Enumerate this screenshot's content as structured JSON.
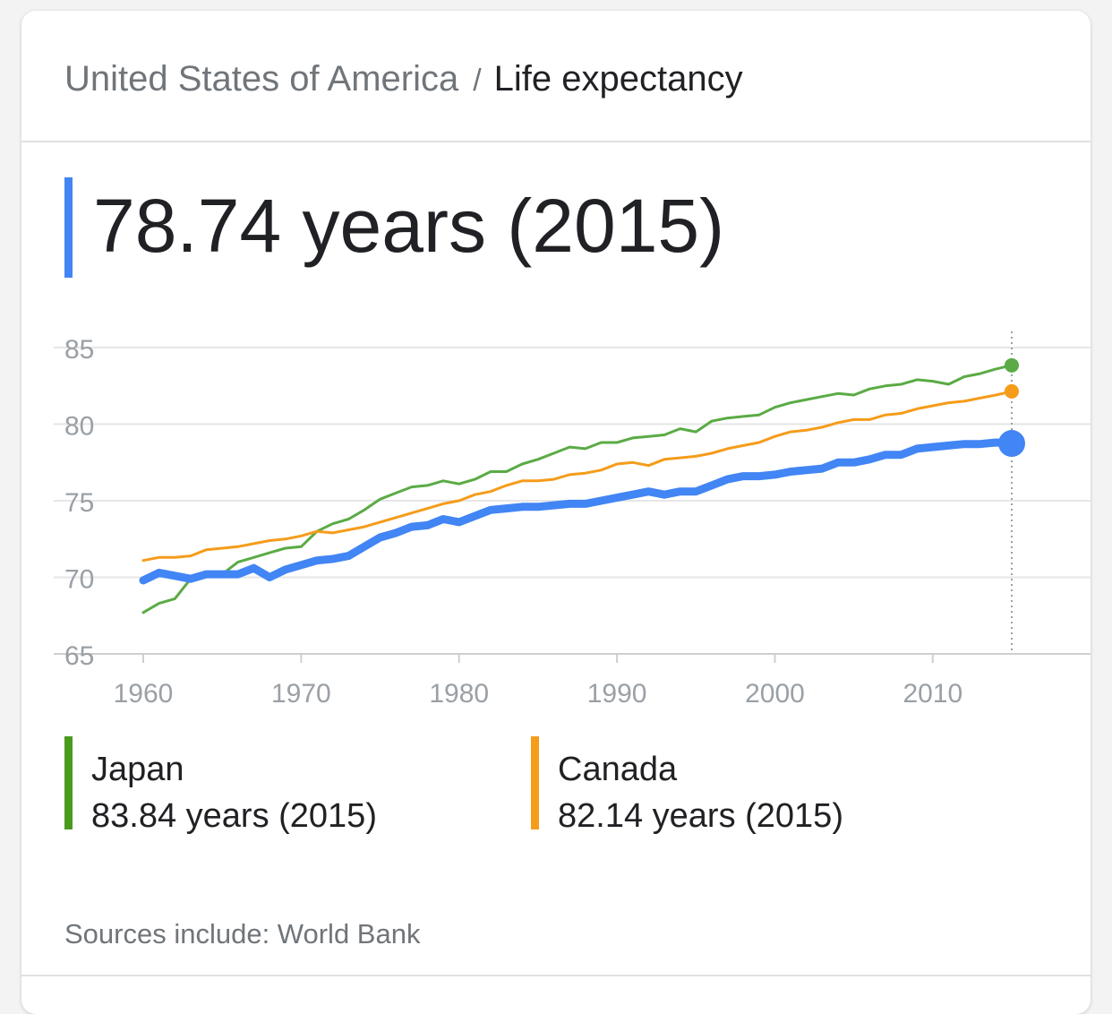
{
  "header": {
    "country": "United States of America",
    "separator": "/",
    "topic": "Life expectancy"
  },
  "main": {
    "value_text": "78.74 years (2015)"
  },
  "legend": [
    {
      "name": "Japan",
      "value_text": "83.84 years (2015)",
      "color": "#4a9a1d"
    },
    {
      "name": "Canada",
      "value_text": "82.14 years (2015)",
      "color": "#f59c1a"
    }
  ],
  "footer": {
    "source": "Sources include: World Bank"
  },
  "chart_data": {
    "type": "line",
    "xlim": [
      1960,
      2015
    ],
    "ylim": [
      65,
      85
    ],
    "x_ticks": [
      "1960",
      "1970",
      "1980",
      "1990",
      "2000",
      "2010"
    ],
    "y_ticks": [
      "85",
      "80",
      "75",
      "70",
      "65"
    ],
    "grid": true,
    "highlight_x": 2015,
    "x": [
      1960,
      1961,
      1962,
      1963,
      1964,
      1965,
      1966,
      1967,
      1968,
      1969,
      1970,
      1971,
      1972,
      1973,
      1974,
      1975,
      1976,
      1977,
      1978,
      1979,
      1980,
      1981,
      1982,
      1983,
      1984,
      1985,
      1986,
      1987,
      1988,
      1989,
      1990,
      1991,
      1992,
      1993,
      1994,
      1995,
      1996,
      1997,
      1998,
      1999,
      2000,
      2001,
      2002,
      2003,
      2004,
      2005,
      2006,
      2007,
      2008,
      2009,
      2010,
      2011,
      2012,
      2013,
      2014,
      2015
    ],
    "series": [
      {
        "name": "United States of America",
        "color": "#4285f4",
        "values": [
          69.8,
          70.3,
          70.1,
          69.9,
          70.2,
          70.2,
          70.2,
          70.6,
          70.0,
          70.5,
          70.8,
          71.1,
          71.2,
          71.4,
          72.0,
          72.6,
          72.9,
          73.3,
          73.4,
          73.8,
          73.6,
          74.0,
          74.4,
          74.5,
          74.6,
          74.6,
          74.7,
          74.8,
          74.8,
          75.0,
          75.2,
          75.4,
          75.6,
          75.4,
          75.6,
          75.6,
          76.0,
          76.4,
          76.6,
          76.6,
          76.7,
          76.9,
          77.0,
          77.1,
          77.5,
          77.5,
          77.7,
          78.0,
          78.0,
          78.4,
          78.5,
          78.6,
          78.7,
          78.7,
          78.8,
          78.74
        ]
      },
      {
        "name": "Japan",
        "color": "#5aab45",
        "values": [
          67.7,
          68.3,
          68.6,
          69.9,
          70.3,
          70.2,
          71.0,
          71.3,
          71.6,
          71.9,
          72.0,
          73.0,
          73.5,
          73.8,
          74.4,
          75.1,
          75.5,
          75.9,
          76.0,
          76.3,
          76.1,
          76.4,
          76.9,
          76.9,
          77.4,
          77.7,
          78.1,
          78.5,
          78.4,
          78.8,
          78.8,
          79.1,
          79.2,
          79.3,
          79.7,
          79.5,
          80.2,
          80.4,
          80.5,
          80.6,
          81.1,
          81.4,
          81.6,
          81.8,
          82.0,
          81.9,
          82.3,
          82.5,
          82.6,
          82.9,
          82.8,
          82.6,
          83.1,
          83.3,
          83.6,
          83.84
        ]
      },
      {
        "name": "Canada",
        "color": "#f59c1a",
        "values": [
          71.1,
          71.3,
          71.3,
          71.4,
          71.8,
          71.9,
          72.0,
          72.2,
          72.4,
          72.5,
          72.7,
          73.0,
          72.9,
          73.1,
          73.3,
          73.6,
          73.9,
          74.2,
          74.5,
          74.8,
          75.0,
          75.4,
          75.6,
          76.0,
          76.3,
          76.3,
          76.4,
          76.7,
          76.8,
          77.0,
          77.4,
          77.5,
          77.3,
          77.7,
          77.8,
          77.9,
          78.1,
          78.4,
          78.6,
          78.8,
          79.2,
          79.5,
          79.6,
          79.8,
          80.1,
          80.3,
          80.3,
          80.6,
          80.7,
          81.0,
          81.2,
          81.4,
          81.5,
          81.7,
          81.9,
          82.14
        ]
      }
    ]
  }
}
